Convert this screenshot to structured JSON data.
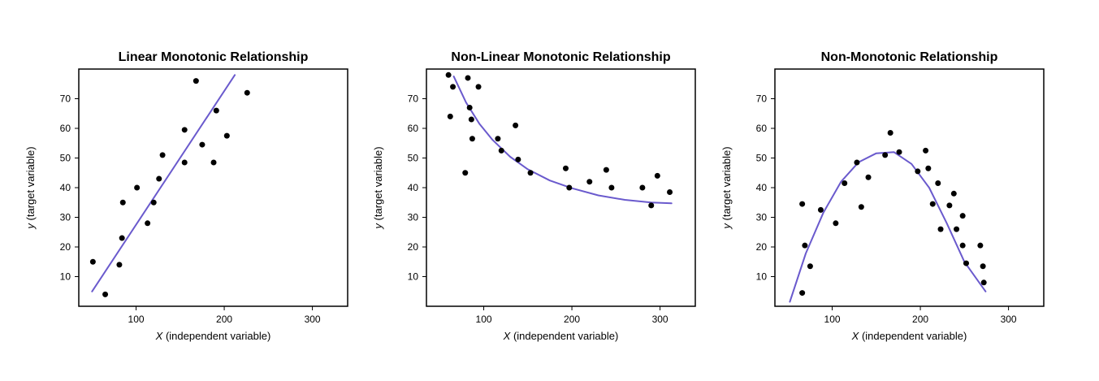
{
  "colors": {
    "curve": "#6a5acd",
    "point": "#000000",
    "frame": "#000000",
    "background": "#ffffff"
  },
  "chart_data": [
    {
      "type": "scatter",
      "title": "Linear Monotonic Relationship",
      "xlabel_var": "X",
      "xlabel_rest": " (independent variable)",
      "ylabel_var": "y",
      "ylabel_rest": " (target variable)",
      "xlim": [
        35,
        340
      ],
      "ylim": [
        0,
        80
      ],
      "xticks": [
        100,
        200,
        300
      ],
      "yticks": [
        10,
        20,
        30,
        40,
        50,
        60,
        70
      ],
      "grid": false,
      "points": [
        [
          51,
          15
        ],
        [
          65,
          4
        ],
        [
          81,
          14
        ],
        [
          84,
          23
        ],
        [
          85,
          35
        ],
        [
          101,
          40
        ],
        [
          113,
          28
        ],
        [
          120,
          35
        ],
        [
          126,
          43
        ],
        [
          130,
          51
        ],
        [
          155,
          48.5
        ],
        [
          155,
          59.5
        ],
        [
          168,
          76
        ],
        [
          175,
          54.5
        ],
        [
          188,
          48.5
        ],
        [
          191,
          66
        ],
        [
          203,
          57.5
        ],
        [
          226,
          72
        ]
      ],
      "fit_line": [
        [
          50,
          5
        ],
        [
          212,
          78
        ]
      ]
    },
    {
      "type": "scatter",
      "title": "Non-Linear Monotonic Relationship",
      "xlabel_var": "X",
      "xlabel_rest": " (independent variable)",
      "ylabel_var": "y",
      "ylabel_rest": " (target variable)",
      "xlim": [
        35,
        340
      ],
      "ylim": [
        0,
        80
      ],
      "xticks": [
        100,
        200,
        300
      ],
      "yticks": [
        10,
        20,
        30,
        40,
        50,
        60,
        70
      ],
      "grid": false,
      "points": [
        [
          60,
          78
        ],
        [
          62,
          64
        ],
        [
          65,
          74
        ],
        [
          79,
          45
        ],
        [
          82,
          77
        ],
        [
          84,
          67
        ],
        [
          86,
          63
        ],
        [
          87,
          56.5
        ],
        [
          94,
          74
        ],
        [
          116,
          56.5
        ],
        [
          120,
          52.5
        ],
        [
          136,
          61
        ],
        [
          139,
          49.5
        ],
        [
          153,
          45
        ],
        [
          193,
          46.5
        ],
        [
          197,
          40
        ],
        [
          220,
          42
        ],
        [
          239,
          46
        ],
        [
          245,
          40
        ],
        [
          280,
          40
        ],
        [
          290,
          34
        ],
        [
          297,
          44
        ],
        [
          311,
          38.5
        ]
      ],
      "fit_curve": [
        [
          66,
          77.5
        ],
        [
          80,
          68.7
        ],
        [
          95,
          61.6
        ],
        [
          110,
          56.1
        ],
        [
          130,
          50.4
        ],
        [
          150,
          46.2
        ],
        [
          175,
          42.4
        ],
        [
          200,
          39.8
        ],
        [
          230,
          37.4
        ],
        [
          260,
          35.9
        ],
        [
          290,
          35.0
        ],
        [
          313,
          34.7
        ]
      ]
    },
    {
      "type": "scatter",
      "title": "Non-Monotonic Relationship",
      "xlabel_var": "X",
      "xlabel_rest": " (independent variable)",
      "ylabel_var": "y",
      "ylabel_rest": " (target variable)",
      "xlim": [
        35,
        340
      ],
      "ylim": [
        0,
        80
      ],
      "xticks": [
        100,
        200,
        300
      ],
      "yticks": [
        10,
        20,
        30,
        40,
        50,
        60,
        70
      ],
      "grid": false,
      "points": [
        [
          66,
          4.5
        ],
        [
          66,
          34.5
        ],
        [
          69,
          20.5
        ],
        [
          75,
          13.5
        ],
        [
          87,
          32.5
        ],
        [
          104,
          28
        ],
        [
          114,
          41.5
        ],
        [
          128,
          48.5
        ],
        [
          133,
          33.5
        ],
        [
          141,
          43.5
        ],
        [
          160,
          51
        ],
        [
          166,
          58.5
        ],
        [
          176,
          52
        ],
        [
          197,
          45.5
        ],
        [
          206,
          52.5
        ],
        [
          209,
          46.5
        ],
        [
          214,
          34.5
        ],
        [
          220,
          41.5
        ],
        [
          223,
          26
        ],
        [
          233,
          34
        ],
        [
          238,
          38
        ],
        [
          241,
          26
        ],
        [
          248,
          30.5
        ],
        [
          248,
          20.5
        ],
        [
          252,
          14.5
        ],
        [
          268,
          20.5
        ],
        [
          271,
          13.5
        ],
        [
          272,
          8
        ]
      ],
      "fit_curve": [
        [
          52,
          1.5
        ],
        [
          70,
          17.8
        ],
        [
          90,
          31.6
        ],
        [
          110,
          42
        ],
        [
          130,
          48.6
        ],
        [
          150,
          51.6
        ],
        [
          170,
          52
        ],
        [
          190,
          48
        ],
        [
          210,
          40
        ],
        [
          230,
          28
        ],
        [
          250,
          15
        ],
        [
          274,
          5
        ]
      ]
    }
  ]
}
